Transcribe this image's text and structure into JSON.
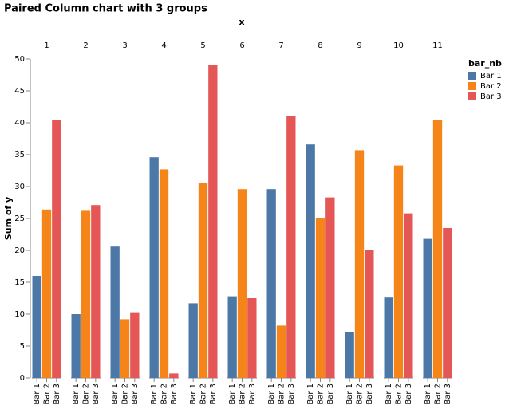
{
  "chart_data": {
    "type": "bar",
    "title": "Paired Column chart with 3 groups",
    "x_title": "x",
    "y_title": "Sum of y",
    "legend_title": "bar_nb",
    "legend_position": "right",
    "grid": false,
    "categories": [
      "1",
      "2",
      "3",
      "4",
      "5",
      "6",
      "7",
      "8",
      "9",
      "10",
      "11"
    ],
    "ylim": [
      0,
      50
    ],
    "yticks": [
      0,
      5,
      10,
      15,
      20,
      25,
      30,
      35,
      40,
      45,
      50
    ],
    "series": [
      {
        "name": "Bar 1",
        "color": "#4c78a8",
        "values": [
          16.0,
          10.0,
          20.6,
          34.6,
          11.7,
          12.8,
          29.6,
          36.6,
          7.2,
          12.6,
          21.8
        ]
      },
      {
        "name": "Bar 2",
        "color": "#f58518",
        "values": [
          26.4,
          26.2,
          9.2,
          32.7,
          30.5,
          29.6,
          8.2,
          25.0,
          35.7,
          33.3,
          40.5
        ]
      },
      {
        "name": "Bar 3",
        "color": "#e45756",
        "values": [
          40.5,
          27.1,
          10.3,
          0.7,
          49.0,
          12.5,
          41.0,
          28.3,
          20.0,
          25.8,
          23.5
        ]
      }
    ]
  }
}
